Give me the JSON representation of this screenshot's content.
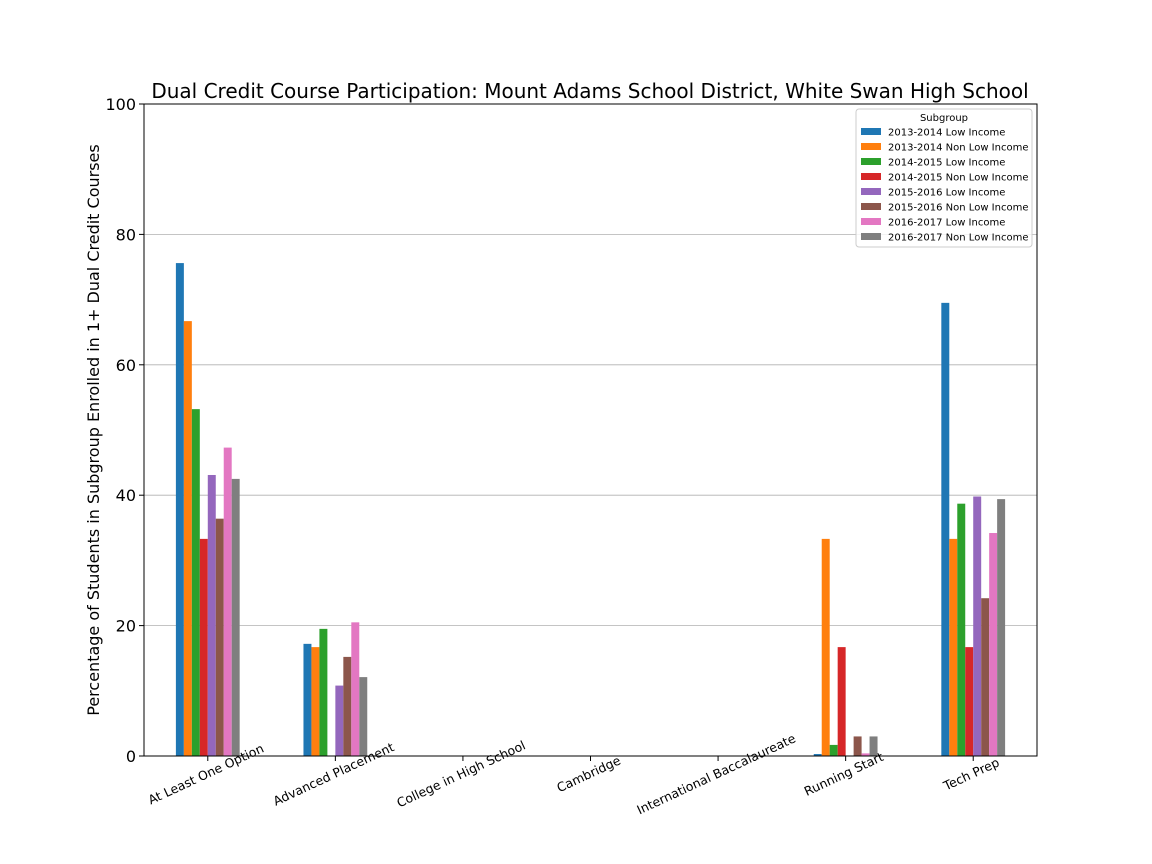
{
  "chart_data": {
    "type": "bar",
    "title": "Dual Credit Course Participation: Mount Adams School District, White Swan High School",
    "xlabel": "",
    "ylabel": "Percentage of Students in Subgroup Enrolled in 1+ Dual Credit Courses",
    "ylim": [
      0,
      100
    ],
    "yticks": [
      0,
      20,
      40,
      60,
      80,
      100
    ],
    "grid": "horizontal",
    "legend": {
      "title": "Subgroup",
      "placement": "top-right"
    },
    "categories": [
      "At Least One Option",
      "Advanced Placement",
      "College in High School",
      "Cambridge",
      "International Baccalaureate",
      "Running Start",
      "Tech Prep"
    ],
    "series": [
      {
        "name": "2013-2014 Low Income",
        "color": "#1f77b4",
        "values": [
          75.6,
          17.2,
          0,
          0,
          0,
          0.3,
          69.5
        ]
      },
      {
        "name": "2013-2014 Non Low Income",
        "color": "#ff7f0e",
        "values": [
          66.7,
          16.7,
          0,
          0,
          0,
          33.3,
          33.3
        ]
      },
      {
        "name": "2014-2015 Low Income",
        "color": "#2ca02c",
        "values": [
          53.2,
          19.5,
          0,
          0,
          0,
          1.7,
          38.7
        ]
      },
      {
        "name": "2014-2015 Non Low Income",
        "color": "#d62728",
        "values": [
          33.3,
          0,
          0,
          0,
          0,
          16.7,
          16.7
        ]
      },
      {
        "name": "2015-2016 Low Income",
        "color": "#9467bd",
        "values": [
          43.1,
          10.8,
          0,
          0,
          0,
          0,
          39.8
        ]
      },
      {
        "name": "2015-2016 Non Low Income",
        "color": "#8c564b",
        "values": [
          36.4,
          15.2,
          0,
          0,
          0,
          3.0,
          24.2
        ]
      },
      {
        "name": "2016-2017 Low Income",
        "color": "#e377c2",
        "values": [
          47.3,
          20.5,
          0,
          0,
          0,
          0.4,
          34.2
        ]
      },
      {
        "name": "2016-2017 Non Low Income",
        "color": "#7f7f7f",
        "values": [
          42.5,
          12.1,
          0,
          0,
          0,
          3.0,
          39.4
        ]
      }
    ]
  }
}
